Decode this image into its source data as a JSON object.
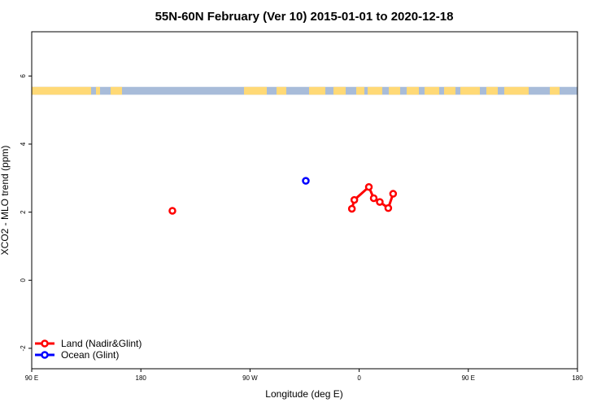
{
  "chart_data": {
    "type": "scatter",
    "title": "55N-60N February (Ver 10)   2015-01-01 to 2020-12-18",
    "xlabel": "Longitude (deg E)",
    "ylabel": "XCO2 - MLO trend (ppm)",
    "x_unwrapped_range": [
      90,
      540
    ],
    "ylim": [
      -2.6,
      7.3
    ],
    "x_ticks": [
      {
        "value": 90,
        "label": "90 E"
      },
      {
        "value": 180,
        "label": "180"
      },
      {
        "value": 270,
        "label": "90 W"
      },
      {
        "value": 360,
        "label": "0"
      },
      {
        "value": 450,
        "label": "90 E"
      },
      {
        "value": 540,
        "label": "180"
      }
    ],
    "y_ticks": [
      {
        "value": -2,
        "label": "-2"
      },
      {
        "value": 0,
        "label": "0"
      },
      {
        "value": 2,
        "label": "2"
      },
      {
        "value": 4,
        "label": "4"
      },
      {
        "value": 6,
        "label": "6"
      }
    ],
    "land_mask_band": {
      "y_bottom": 5.45,
      "y_top": 5.68,
      "land_color": "#ffd976",
      "ocean_color": "#a8bcd9"
    },
    "series": [
      {
        "name": "Land (Nadir&Glint)",
        "color": "#ff0000",
        "groups": [
          [
            {
              "lon": 206,
              "y": 2.04
            }
          ],
          [
            {
              "lon": 354,
              "y": 2.1
            },
            {
              "lon": 356,
              "y": 2.36
            },
            {
              "lon": 368,
              "y": 2.74
            },
            {
              "lon": 372,
              "y": 2.41
            },
            {
              "lon": 377,
              "y": 2.3
            },
            {
              "lon": 384,
              "y": 2.12
            },
            {
              "lon": 388,
              "y": 2.54
            }
          ]
        ]
      },
      {
        "name": "Ocean (Glint)",
        "color": "#0000ff",
        "groups": [
          [
            {
              "lon": 316,
              "y": 2.92
            }
          ]
        ]
      }
    ],
    "legend_position": "bottom-left"
  }
}
